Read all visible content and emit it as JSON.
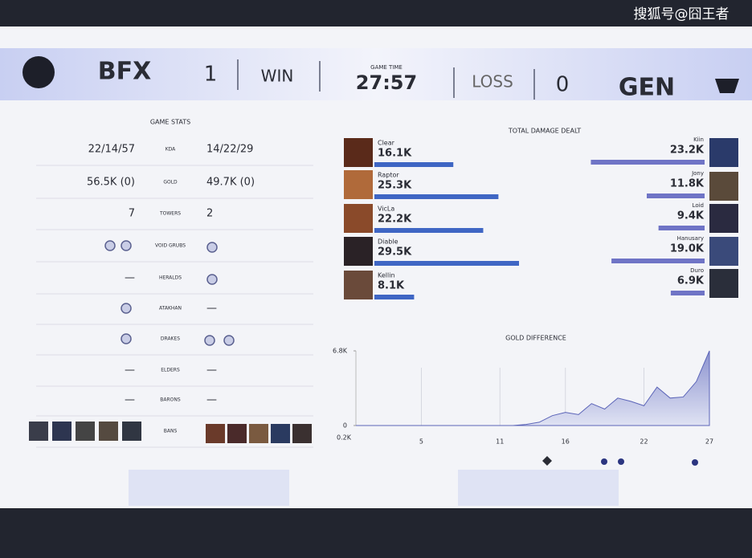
{
  "watermark": "搜狐号@囧王者",
  "header": {
    "left_team": "BFX",
    "left_score": "1",
    "left_result": "WIN",
    "time_label": "GAME TIME",
    "time": "27:57",
    "right_result": "LOSS",
    "right_score": "0",
    "right_team": "GEN"
  },
  "stats": {
    "title": "GAME STATS",
    "rows": [
      {
        "left": "22/14/57",
        "label": "KDA",
        "right": "14/22/29"
      },
      {
        "left": "56.5K (0)",
        "label": "GOLD",
        "right": "49.7K (0)"
      },
      {
        "left": "7",
        "label": "TOWERS",
        "right": "2"
      },
      {
        "label": "VOID GRUBS"
      },
      {
        "left": "—",
        "label": "HERALDS"
      },
      {
        "label": "ATAKHAN",
        "right": "—"
      },
      {
        "label": "DRAKES"
      },
      {
        "left": "—",
        "label": "ELDERS",
        "right": "—"
      },
      {
        "left": "—",
        "label": "BARONS",
        "right": "—"
      },
      {
        "label": "BANS"
      }
    ]
  },
  "damage": {
    "title": "TOTAL DAMAGE DEALT",
    "left": [
      {
        "name": "Clear",
        "value": 16100,
        "label": "16.1K"
      },
      {
        "name": "Raptor",
        "value": 25300,
        "label": "25.3K"
      },
      {
        "name": "VicLa",
        "value": 22200,
        "label": "22.2K"
      },
      {
        "name": "Diable",
        "value": 29500,
        "label": "29.5K"
      },
      {
        "name": "Kellin",
        "value": 8100,
        "label": "8.1K"
      }
    ],
    "right": [
      {
        "name": "Kiin",
        "value": 23200,
        "label": "23.2K"
      },
      {
        "name": "Jony",
        "value": 11800,
        "label": "11.8K"
      },
      {
        "name": "Loid",
        "value": 9400,
        "label": "9.4K"
      },
      {
        "name": "Hanusary",
        "value": 19000,
        "label": "19.0K"
      },
      {
        "name": "Duro",
        "value": 6900,
        "label": "6.9K"
      }
    ]
  },
  "gold": {
    "title": "GOLD DIFFERENCE",
    "corner_label": "0.2K",
    "ylim": [
      0,
      6800
    ],
    "yticks": [
      {
        "value": 6800,
        "label": "6.8K"
      },
      0
    ],
    "xlim": [
      0,
      27
    ],
    "xticks": [
      5,
      11,
      16,
      22,
      27
    ],
    "x": [
      0,
      1,
      2,
      3,
      4,
      5,
      6,
      7,
      8,
      9,
      10,
      11,
      12,
      13,
      14,
      15,
      16,
      17,
      18,
      19,
      20,
      21,
      22,
      23,
      24,
      25,
      26,
      27
    ],
    "values": [
      0,
      0,
      0,
      0,
      0,
      0,
      0,
      0,
      0,
      0,
      0,
      0,
      0,
      100,
      300,
      900,
      1200,
      1000,
      2000,
      1500,
      2500,
      2200,
      1800,
      3500,
      2500,
      2600,
      4000,
      6800
    ]
  }
}
